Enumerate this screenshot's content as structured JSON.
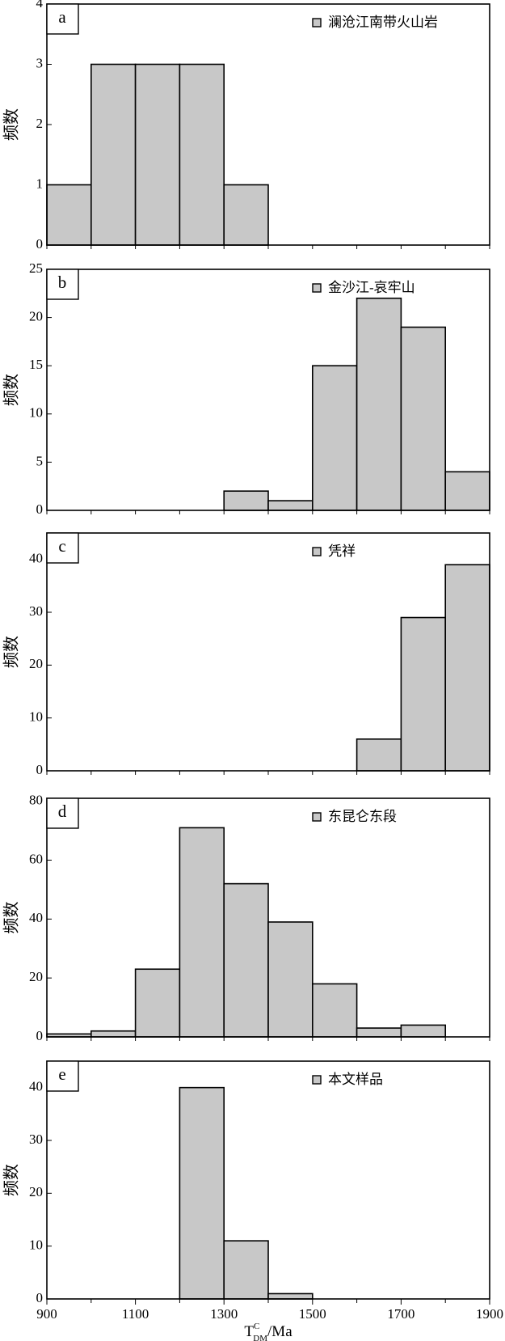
{
  "chart_data": [
    {
      "type": "histogram",
      "panel_label": "a",
      "legend": "澜沧江南带火山岩",
      "ylabel": "频数",
      "color": "#c8c8c8",
      "bins": [
        900,
        1000,
        1100,
        1200,
        1300,
        1400
      ],
      "values": [
        1,
        3,
        3,
        3,
        1
      ],
      "xlim": [
        900,
        1900
      ],
      "xminor": [
        900,
        1000,
        1100,
        1200,
        1300,
        1400,
        1500,
        1600,
        1700,
        1800,
        1900
      ],
      "ylim": [
        0,
        4
      ],
      "yticks": [
        0,
        1,
        2,
        3,
        4
      ]
    },
    {
      "type": "histogram",
      "panel_label": "b",
      "legend": "金沙江-哀牢山",
      "ylabel": "频数",
      "color": "#c8c8c8",
      "bins": [
        1300,
        1400,
        1500,
        1600,
        1700,
        1800,
        1900
      ],
      "values": [
        2,
        1,
        15,
        22,
        19,
        4
      ],
      "xlim": [
        900,
        1900
      ],
      "xminor": [
        900,
        1000,
        1100,
        1200,
        1300,
        1400,
        1500,
        1600,
        1700,
        1800,
        1900
      ],
      "ylim": [
        0,
        25
      ],
      "yticks": [
        0,
        5,
        10,
        15,
        20,
        25
      ]
    },
    {
      "type": "histogram",
      "panel_label": "c",
      "legend": "凭祥",
      "ylabel": "频数",
      "color": "#c8c8c8",
      "bins": [
        1600,
        1700,
        1800,
        1900
      ],
      "values": [
        6,
        29,
        39
      ],
      "xlim": [
        900,
        1900
      ],
      "xminor": [
        900,
        1000,
        1100,
        1200,
        1300,
        1400,
        1500,
        1600,
        1700,
        1800,
        1900
      ],
      "ylim": [
        0,
        45
      ],
      "yticks": [
        0,
        10,
        20,
        30,
        40
      ]
    },
    {
      "type": "histogram",
      "panel_label": "d",
      "legend": "东昆仑东段",
      "ylabel": "频数",
      "color": "#c8c8c8",
      "bins": [
        900,
        1000,
        1100,
        1200,
        1300,
        1400,
        1500,
        1600,
        1700,
        1800
      ],
      "values": [
        1,
        2,
        23,
        71,
        52,
        39,
        18,
        3,
        4
      ],
      "xlim": [
        900,
        1900
      ],
      "xminor": [
        900,
        1000,
        1100,
        1200,
        1300,
        1400,
        1500,
        1600,
        1700,
        1800,
        1900
      ],
      "ylim": [
        0,
        81
      ],
      "yticks": [
        0,
        20,
        40,
        60,
        80
      ]
    },
    {
      "type": "histogram",
      "panel_label": "e",
      "legend": "本文样品",
      "ylabel": "频数",
      "color": "#c8c8c8",
      "bins": [
        1200,
        1300,
        1400,
        1500
      ],
      "values": [
        40,
        11,
        1
      ],
      "xlim": [
        900,
        1900
      ],
      "xminor": [
        1000,
        1200,
        1400,
        1600,
        1800
      ],
      "xticks": [
        900,
        1100,
        1300,
        1500,
        1700,
        1900
      ],
      "xlabel": {
        "main": "T",
        "sup": "C",
        "sub": "DM",
        "unit": "/Ma"
      },
      "ylim": [
        0,
        45
      ],
      "yticks": [
        0,
        10,
        20,
        30,
        40
      ]
    }
  ]
}
